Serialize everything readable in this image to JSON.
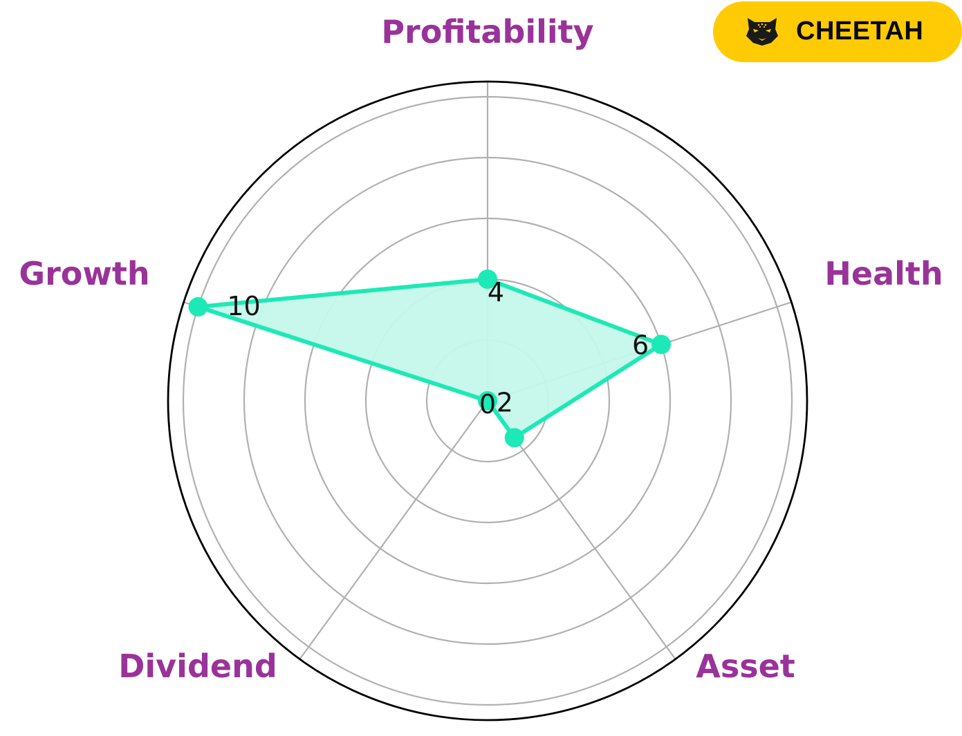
{
  "brand": {
    "name": "CHEETAH",
    "icon": "cheetah-head-icon",
    "badge_color": "#FFCB05"
  },
  "chart_data": {
    "type": "radar",
    "categories": [
      "Profitability",
      "Health",
      "Asset",
      "Dividend",
      "Growth"
    ],
    "values": [
      4,
      6,
      1.5,
      0,
      10
    ],
    "value_labels": [
      "4",
      "6",
      "2",
      "0",
      "10"
    ],
    "rlim": [
      0,
      10.5
    ],
    "grid_rings": [
      2,
      4,
      6,
      8,
      10
    ],
    "grid": true,
    "colors": {
      "series": "#1DE9B6",
      "fill": "#C5F7EA",
      "labels": "#993399",
      "grid": "#B0B0B0",
      "outline": "#000000"
    }
  }
}
